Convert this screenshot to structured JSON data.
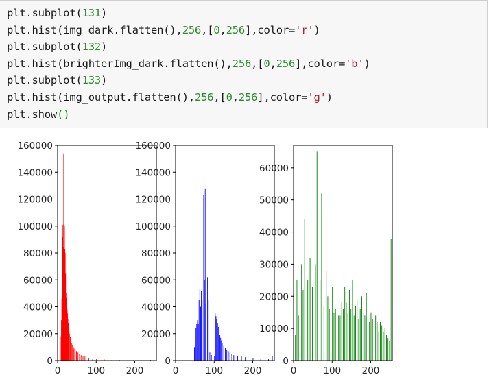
{
  "code_cell": {
    "lines": [
      [
        {
          "t": "plt.subplot("
        },
        {
          "t": "131",
          "c": "num"
        },
        {
          "t": ")"
        }
      ],
      [
        {
          "t": "plt.hist(img_dark.flatten(),"
        },
        {
          "t": "256",
          "c": "num"
        },
        {
          "t": ",["
        },
        {
          "t": "0",
          "c": "num"
        },
        {
          "t": ","
        },
        {
          "t": "256",
          "c": "num"
        },
        {
          "t": "],color="
        },
        {
          "t": "'r'",
          "c": "str"
        },
        {
          "t": ")"
        }
      ],
      [
        {
          "t": "plt.subplot("
        },
        {
          "t": "132",
          "c": "num"
        },
        {
          "t": ")"
        }
      ],
      [
        {
          "t": "plt.hist(brighterImg_dark.flatten(),"
        },
        {
          "t": "256",
          "c": "num"
        },
        {
          "t": ",["
        },
        {
          "t": "0",
          "c": "num"
        },
        {
          "t": ","
        },
        {
          "t": "256",
          "c": "num"
        },
        {
          "t": "],color="
        },
        {
          "t": "'b'",
          "c": "str"
        },
        {
          "t": ")"
        }
      ],
      [
        {
          "t": "plt.subplot("
        },
        {
          "t": "133",
          "c": "num"
        },
        {
          "t": ")"
        }
      ],
      [
        {
          "t": "plt.hist(img_output.flatten(),"
        },
        {
          "t": "256",
          "c": "num"
        },
        {
          "t": ",["
        },
        {
          "t": "0",
          "c": "num"
        },
        {
          "t": ","
        },
        {
          "t": "256",
          "c": "num"
        },
        {
          "t": "],color="
        },
        {
          "t": "'g'",
          "c": "str"
        },
        {
          "t": ")"
        }
      ],
      [
        {
          "t": "plt.show"
        },
        {
          "t": "()",
          "c": "par"
        }
      ]
    ]
  },
  "colors": {
    "red": "#ff0000",
    "blue": "#0000ff",
    "green": "#008000"
  },
  "chart_data": [
    {
      "type": "bar",
      "color": "red",
      "xlim": [
        0,
        256
      ],
      "ylim": [
        0,
        160000
      ],
      "xticks": [
        0,
        100,
        200
      ],
      "yticks": [
        0,
        20000,
        40000,
        60000,
        80000,
        100000,
        120000,
        140000,
        160000
      ],
      "x": [
        8,
        9,
        10,
        11,
        12,
        13,
        14,
        15,
        16,
        17,
        18,
        19,
        20,
        21,
        22,
        23,
        24,
        25,
        26,
        27,
        28,
        29,
        30,
        32,
        34,
        36,
        38,
        40,
        42,
        45,
        48,
        52,
        56,
        60,
        65,
        70,
        80,
        90,
        100,
        120,
        140,
        160,
        180,
        200,
        240
      ],
      "values": [
        18000,
        30000,
        46000,
        88000,
        92000,
        101000,
        84000,
        154000,
        60000,
        100000,
        83000,
        80000,
        65000,
        50000,
        47000,
        42000,
        38000,
        35000,
        31000,
        28000,
        25000,
        22000,
        20000,
        17500,
        15000,
        13000,
        11500,
        10000,
        9000,
        8000,
        7000,
        6000,
        5000,
        4000,
        3500,
        3000,
        2000,
        1600,
        1200,
        900,
        600,
        400,
        250,
        150,
        500
      ]
    },
    {
      "type": "bar",
      "color": "blue",
      "xlim": [
        0,
        256
      ],
      "ylim": [
        0,
        160000
      ],
      "xticks": [
        0,
        100,
        200
      ],
      "yticks": [
        0,
        20000,
        40000,
        60000,
        80000,
        100000,
        120000,
        140000,
        160000
      ],
      "x": [
        48,
        50,
        52,
        54,
        56,
        58,
        60,
        62,
        64,
        66,
        68,
        72,
        74,
        76,
        78,
        82,
        84,
        88,
        92,
        96,
        100,
        102,
        104,
        106,
        108,
        110,
        112,
        114,
        116,
        118,
        120,
        124,
        128,
        132,
        136,
        140,
        145,
        150,
        160,
        170,
        180,
        200,
        220,
        240,
        250
      ],
      "values": [
        10000,
        18000,
        24000,
        27000,
        30000,
        27000,
        45000,
        53000,
        40000,
        52000,
        45000,
        123000,
        60000,
        128000,
        42000,
        62000,
        45000,
        6000,
        4000,
        3500,
        3000,
        35000,
        33000,
        31000,
        28000,
        25000,
        22000,
        19000,
        17000,
        15000,
        13000,
        11000,
        9500,
        8000,
        7000,
        6000,
        5000,
        4000,
        3500,
        3000,
        2500,
        2000,
        1500,
        1000,
        3500
      ]
    },
    {
      "type": "bar",
      "color": "green",
      "xlim": [
        0,
        256
      ],
      "ylim": [
        0,
        67000
      ],
      "xticks": [
        0,
        100,
        200
      ],
      "yticks": [
        0,
        10000,
        20000,
        30000,
        40000,
        50000,
        60000
      ],
      "x": [
        0,
        4,
        8,
        12,
        16,
        20,
        24,
        28,
        36,
        42,
        48,
        56,
        60,
        68,
        72,
        78,
        84,
        88,
        92,
        96,
        100,
        104,
        108,
        112,
        116,
        120,
        124,
        128,
        132,
        136,
        140,
        144,
        148,
        152,
        156,
        160,
        164,
        168,
        172,
        176,
        180,
        184,
        188,
        192,
        196,
        200,
        204,
        208,
        212,
        216,
        220,
        224,
        228,
        232,
        236,
        240,
        244,
        248,
        252
      ],
      "values": [
        1000,
        8000,
        25000,
        14000,
        26000,
        30000,
        22000,
        44000,
        25000,
        32000,
        23000,
        30000,
        65000,
        25000,
        52000,
        17000,
        28000,
        20000,
        16000,
        17000,
        23000,
        15000,
        16000,
        21000,
        14000,
        14000,
        18000,
        16000,
        23000,
        18000,
        15000,
        22000,
        16000,
        25000,
        14000,
        17000,
        19000,
        13000,
        16000,
        20000,
        15000,
        14000,
        21000,
        14000,
        12000,
        15000,
        13000,
        10000,
        14000,
        12000,
        9000,
        12000,
        11000,
        9000,
        10000,
        8000,
        7000,
        6000,
        38000
      ]
    }
  ]
}
